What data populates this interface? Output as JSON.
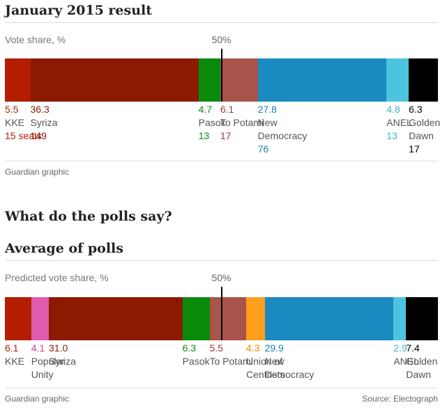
{
  "chart_data": [
    {
      "type": "bar",
      "stacked": true,
      "title": "January 2015 result",
      "subtitle": "Vote share, %",
      "marker_label": "50%",
      "marker_value": 50,
      "footer": "Guardian graphic",
      "source": "",
      "categories": [
        "KKE",
        "Syriza",
        "Pasok",
        "To Potami",
        "",
        "New Democracy",
        "ANEL",
        "Golden Dawn"
      ],
      "series": [
        {
          "name": "KKE",
          "label": "KKE",
          "value": 5.5,
          "value_text": "5.5",
          "seats": "15 seats",
          "color": "#b41d00",
          "text_color": "#b41d00"
        },
        {
          "name": "Syriza",
          "label": "Syriza",
          "value": 36.3,
          "value_text": "36.3",
          "seats": "149",
          "color": "#8b1a00",
          "text_color": "#8b1a00"
        },
        {
          "name": "Pasok",
          "label": "Pasok",
          "value": 4.7,
          "value_text": "4.7",
          "seats": "13",
          "color": "#0a8a0a",
          "text_color": "#0a8a0a"
        },
        {
          "name": "To Potami",
          "label": "To Potami",
          "value": 6.1,
          "value_text": "6.1",
          "seats": "17",
          "color": "#a8544a",
          "text_color": "#9b3b2e"
        },
        {
          "name": "",
          "label": "",
          "value": 2.0,
          "value_text": "",
          "seats": "",
          "color": "#a8544a",
          "text_color": "#9b3b2e"
        },
        {
          "name": "New Democracy",
          "label": "New\nDemocracy",
          "value": 27.8,
          "value_text": "27.8",
          "seats": "76",
          "color": "#1a8ac0",
          "text_color": "#1a7fb5"
        },
        {
          "name": "ANEL",
          "label": "ANEL",
          "value": 4.8,
          "value_text": "4.8",
          "seats": "13",
          "color": "#4dc4de",
          "text_color": "#3db6d4"
        },
        {
          "name": "Golden Dawn",
          "label": "Golden\nDawn",
          "value": 6.3,
          "value_text": "6.3",
          "seats": "17",
          "color": "#000000",
          "text_color": "#000000"
        }
      ]
    },
    {
      "type": "bar",
      "stacked": true,
      "title": "Average of polls",
      "subtitle": "Predicted vote share, %",
      "marker_label": "50%",
      "marker_value": 50,
      "footer": "Guardian graphic",
      "source": "Source: Electograph",
      "categories": [
        "KKE",
        "Popular Unity",
        "Syriza",
        "Pasok",
        "To Potami",
        "",
        "Union of Centrists",
        "New Democracy",
        "ANEL",
        "Golden Dawn"
      ],
      "series": [
        {
          "name": "KKE",
          "label": "KKE",
          "value": 6.1,
          "value_text": "6.1",
          "color": "#b41d00",
          "text_color": "#b41d00"
        },
        {
          "name": "Popular Unity",
          "label": "Popular\nUnity",
          "value": 4.1,
          "value_text": "4.1",
          "color": "#de5bb0",
          "text_color": "#c8409a"
        },
        {
          "name": "Syriza",
          "label": "Syriza",
          "value": 31.0,
          "value_text": "31.0",
          "color": "#8b1a00",
          "text_color": "#8b1a00"
        },
        {
          "name": "Pasok",
          "label": "Pasok",
          "value": 6.3,
          "value_text": "6.3",
          "color": "#0a8a0a",
          "text_color": "#0a8a0a"
        },
        {
          "name": "To Potami",
          "label": "To Potami",
          "value": 5.5,
          "value_text": "5.5",
          "color": "#a8544a",
          "text_color": "#9b3b2e"
        },
        {
          "name": "",
          "label": "",
          "value": 3.0,
          "value_text": "",
          "color": "#a8544a",
          "text_color": "#9b3b2e"
        },
        {
          "name": "Union of Centrists",
          "label": "Union of\nCentrists",
          "value": 4.3,
          "value_text": "4.3",
          "color": "#ff9e1a",
          "text_color": "#f08a00"
        },
        {
          "name": "New Democracy",
          "label": "New\nDemocracy",
          "value": 29.9,
          "value_text": "29.9",
          "color": "#1a8ac0",
          "text_color": "#1a7fb5"
        },
        {
          "name": "ANEL",
          "label": "ANEL",
          "value": 2.9,
          "value_text": "2.9",
          "color": "#4dc4de",
          "text_color": "#3db6d4"
        },
        {
          "name": "Golden Dawn",
          "label": "Golden\nDawn",
          "value": 7.4,
          "value_text": "7.4",
          "color": "#000000",
          "text_color": "#000000"
        }
      ]
    }
  ],
  "middle_heading": "What do the polls say?"
}
